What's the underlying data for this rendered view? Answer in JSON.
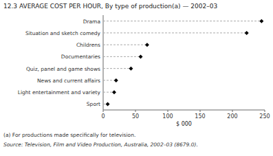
{
  "chart_data": {
    "type": "dot",
    "orientation": "horizontal",
    "title": "12.3  AVERAGE COST PER HOUR, By type of production(a) — 2002–03",
    "categories": [
      "Drama",
      "Situation and sketch comedy",
      "Childrens",
      "Documentaries",
      "Quiz, panel and game shows",
      "News and current affairs",
      "Light entertainment and variety",
      "Sport"
    ],
    "values": [
      245,
      222,
      68,
      58,
      43,
      20,
      17,
      7
    ],
    "xlabel": "$ 000",
    "xlim": [
      0,
      250
    ],
    "xticks": [
      0,
      50,
      100,
      150,
      200,
      250
    ],
    "annotations": [
      "(a) For productions made specifically for television.",
      "Source: Television, Film and Video Production, Australia, 2002–03 (8679.0)."
    ],
    "color": "#000000",
    "marker": "diamond",
    "line_style": "dashed",
    "grid": false
  }
}
